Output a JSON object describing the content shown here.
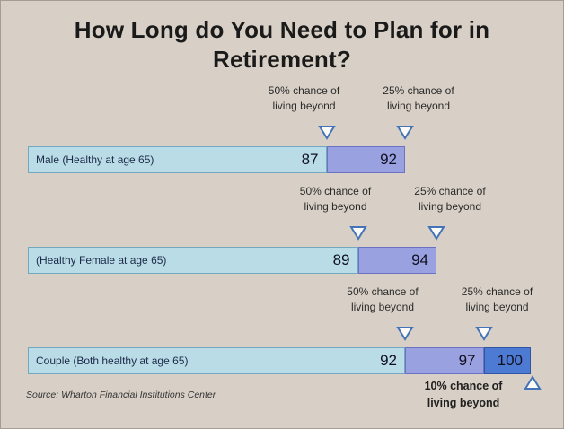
{
  "display_title": "How Long do You Need to Plan for in\nRetirement?",
  "annotations": {
    "fifty": "50% chance of\nliving beyond",
    "twentyfive": "25% chance of\nliving beyond",
    "ten": "10% chance of\nliving beyond"
  },
  "chart_data": {
    "type": "bar",
    "orientation": "horizontal",
    "title": "How Long do You Need to Plan for in Retirement?",
    "categories": [
      "Male (Healthy at age 65)",
      "(Healthy Female at age 65)",
      "Couple (Both healthy at age 65)"
    ],
    "series": [
      {
        "name": "50% chance of living beyond",
        "values": [
          87,
          89,
          92
        ]
      },
      {
        "name": "25% chance of living beyond",
        "values": [
          92,
          94,
          97
        ]
      },
      {
        "name": "10% chance of living beyond",
        "values": [
          null,
          null,
          100
        ]
      }
    ],
    "value_range": [
      68,
      100
    ],
    "grid": false,
    "legend": "none",
    "source": "Source: Wharton Financial Institutions Center",
    "colors": {
      "background": "#d8d0c6",
      "segment_fills": [
        "#b9dce6",
        "#9aa1e0",
        "#4d7bd4"
      ],
      "segment_borders": [
        "#74a7c0",
        "#6b72c4",
        "#2f55a4"
      ],
      "marker_stroke": "#4473b8"
    }
  }
}
